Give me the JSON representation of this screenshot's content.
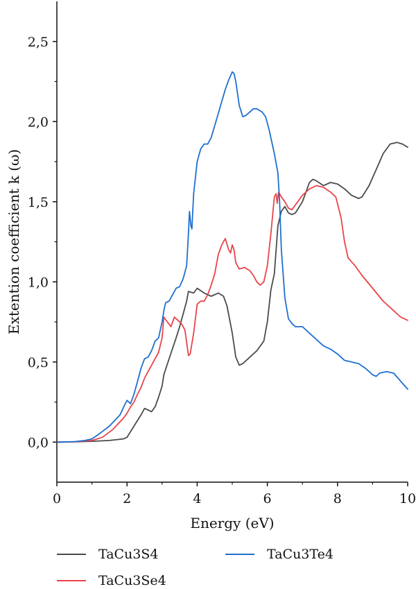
{
  "chart_data": {
    "type": "line",
    "xlabel": "Energy (eV)",
    "ylabel": "Extention coefficient k (ω)",
    "xlim": [
      0,
      10
    ],
    "ylim": [
      -0.25,
      2.75
    ],
    "x_ticks": [
      0,
      2,
      4,
      6,
      8,
      10
    ],
    "x_tick_labels": [
      "0",
      "2",
      "4",
      "6",
      "8",
      "10"
    ],
    "y_ticks": [
      0,
      0.5,
      1,
      1.5,
      2,
      2.5
    ],
    "y_tick_labels": [
      "0,0",
      "0,5",
      "1,0",
      "1,5",
      "2,0",
      "2,5"
    ],
    "grid": false,
    "legend_position": "bottom",
    "series": [
      {
        "name": "TaCu3S4",
        "color": "#4a4a4a",
        "points": [
          [
            0,
            0
          ],
          [
            0.5,
            0.002
          ],
          [
            1,
            0.005
          ],
          [
            1.5,
            0.01
          ],
          [
            1.9,
            0.02
          ],
          [
            2.0,
            0.03
          ],
          [
            2.2,
            0.1
          ],
          [
            2.4,
            0.17
          ],
          [
            2.5,
            0.21
          ],
          [
            2.6,
            0.2
          ],
          [
            2.7,
            0.19
          ],
          [
            2.8,
            0.22
          ],
          [
            2.9,
            0.28
          ],
          [
            3.0,
            0.35
          ],
          [
            3.05,
            0.42
          ],
          [
            3.2,
            0.52
          ],
          [
            3.4,
            0.65
          ],
          [
            3.5,
            0.72
          ],
          [
            3.6,
            0.8
          ],
          [
            3.7,
            0.88
          ],
          [
            3.75,
            0.94
          ],
          [
            3.9,
            0.93
          ],
          [
            4.0,
            0.96
          ],
          [
            4.2,
            0.93
          ],
          [
            4.4,
            0.91
          ],
          [
            4.6,
            0.93
          ],
          [
            4.75,
            0.91
          ],
          [
            4.85,
            0.85
          ],
          [
            5.0,
            0.68
          ],
          [
            5.1,
            0.53
          ],
          [
            5.2,
            0.48
          ],
          [
            5.3,
            0.49
          ],
          [
            5.5,
            0.53
          ],
          [
            5.7,
            0.57
          ],
          [
            5.9,
            0.63
          ],
          [
            6.0,
            0.75
          ],
          [
            6.1,
            0.95
          ],
          [
            6.2,
            1.05
          ],
          [
            6.3,
            1.35
          ],
          [
            6.4,
            1.44
          ],
          [
            6.5,
            1.47
          ],
          [
            6.6,
            1.43
          ],
          [
            6.7,
            1.42
          ],
          [
            6.8,
            1.43
          ],
          [
            7.0,
            1.5
          ],
          [
            7.2,
            1.62
          ],
          [
            7.3,
            1.64
          ],
          [
            7.4,
            1.63
          ],
          [
            7.6,
            1.6
          ],
          [
            7.8,
            1.62
          ],
          [
            8.0,
            1.61
          ],
          [
            8.2,
            1.58
          ],
          [
            8.4,
            1.54
          ],
          [
            8.6,
            1.52
          ],
          [
            8.7,
            1.53
          ],
          [
            8.9,
            1.6
          ],
          [
            9.1,
            1.7
          ],
          [
            9.3,
            1.8
          ],
          [
            9.5,
            1.86
          ],
          [
            9.7,
            1.87
          ],
          [
            9.85,
            1.86
          ],
          [
            10,
            1.84
          ]
        ]
      },
      {
        "name": "TaCu3Se4",
        "color": "#e8434a",
        "points": [
          [
            0,
            0
          ],
          [
            0.5,
            0.002
          ],
          [
            1,
            0.01
          ],
          [
            1.3,
            0.03
          ],
          [
            1.6,
            0.08
          ],
          [
            1.9,
            0.15
          ],
          [
            2.0,
            0.18
          ],
          [
            2.1,
            0.22
          ],
          [
            2.2,
            0.25
          ],
          [
            2.3,
            0.3
          ],
          [
            2.4,
            0.34
          ],
          [
            2.5,
            0.4
          ],
          [
            2.7,
            0.48
          ],
          [
            2.9,
            0.56
          ],
          [
            3.0,
            0.65
          ],
          [
            3.05,
            0.78
          ],
          [
            3.15,
            0.75
          ],
          [
            3.25,
            0.72
          ],
          [
            3.35,
            0.78
          ],
          [
            3.45,
            0.76
          ],
          [
            3.55,
            0.74
          ],
          [
            3.65,
            0.7
          ],
          [
            3.75,
            0.54
          ],
          [
            3.8,
            0.55
          ],
          [
            3.9,
            0.68
          ],
          [
            4.0,
            0.86
          ],
          [
            4.1,
            0.88
          ],
          [
            4.2,
            0.88
          ],
          [
            4.3,
            0.92
          ],
          [
            4.4,
            0.98
          ],
          [
            4.5,
            1.05
          ],
          [
            4.6,
            1.17
          ],
          [
            4.7,
            1.23
          ],
          [
            4.8,
            1.27
          ],
          [
            4.9,
            1.2
          ],
          [
            4.95,
            1.18
          ],
          [
            5.0,
            1.23
          ],
          [
            5.05,
            1.2
          ],
          [
            5.1,
            1.12
          ],
          [
            5.2,
            1.08
          ],
          [
            5.35,
            1.09
          ],
          [
            5.5,
            1.07
          ],
          [
            5.6,
            1.04
          ],
          [
            5.7,
            1.0
          ],
          [
            5.8,
            0.98
          ],
          [
            5.9,
            1.0
          ],
          [
            6.0,
            1.1
          ],
          [
            6.1,
            1.3
          ],
          [
            6.2,
            1.53
          ],
          [
            6.25,
            1.55
          ],
          [
            6.28,
            1.49
          ],
          [
            6.32,
            1.56
          ],
          [
            6.4,
            1.53
          ],
          [
            6.5,
            1.5
          ],
          [
            6.6,
            1.46
          ],
          [
            6.7,
            1.45
          ],
          [
            6.8,
            1.48
          ],
          [
            7.0,
            1.54
          ],
          [
            7.2,
            1.58
          ],
          [
            7.4,
            1.6
          ],
          [
            7.6,
            1.59
          ],
          [
            7.8,
            1.56
          ],
          [
            7.95,
            1.53
          ],
          [
            8.1,
            1.4
          ],
          [
            8.2,
            1.25
          ],
          [
            8.3,
            1.15
          ],
          [
            8.5,
            1.1
          ],
          [
            8.7,
            1.04
          ],
          [
            9.0,
            0.96
          ],
          [
            9.3,
            0.88
          ],
          [
            9.6,
            0.82
          ],
          [
            9.8,
            0.78
          ],
          [
            10,
            0.76
          ]
        ]
      },
      {
        "name": "TaCu3Te4",
        "color": "#1e6fd0",
        "points": [
          [
            0,
            0
          ],
          [
            0.5,
            0.003
          ],
          [
            0.8,
            0.01
          ],
          [
            1.0,
            0.02
          ],
          [
            1.2,
            0.05
          ],
          [
            1.5,
            0.1
          ],
          [
            1.8,
            0.17
          ],
          [
            1.95,
            0.24
          ],
          [
            2.0,
            0.26
          ],
          [
            2.1,
            0.24
          ],
          [
            2.2,
            0.3
          ],
          [
            2.3,
            0.38
          ],
          [
            2.4,
            0.46
          ],
          [
            2.5,
            0.52
          ],
          [
            2.6,
            0.53
          ],
          [
            2.7,
            0.57
          ],
          [
            2.8,
            0.63
          ],
          [
            2.9,
            0.65
          ],
          [
            3.0,
            0.75
          ],
          [
            3.05,
            0.82
          ],
          [
            3.1,
            0.87
          ],
          [
            3.2,
            0.88
          ],
          [
            3.3,
            0.92
          ],
          [
            3.4,
            0.96
          ],
          [
            3.5,
            0.97
          ],
          [
            3.6,
            1.02
          ],
          [
            3.7,
            1.1
          ],
          [
            3.75,
            1.3
          ],
          [
            3.78,
            1.44
          ],
          [
            3.82,
            1.35
          ],
          [
            3.85,
            1.33
          ],
          [
            3.9,
            1.55
          ],
          [
            4.0,
            1.75
          ],
          [
            4.1,
            1.83
          ],
          [
            4.2,
            1.86
          ],
          [
            4.3,
            1.86
          ],
          [
            4.4,
            1.9
          ],
          [
            4.6,
            2.05
          ],
          [
            4.8,
            2.2
          ],
          [
            4.9,
            2.26
          ],
          [
            5.0,
            2.31
          ],
          [
            5.05,
            2.3
          ],
          [
            5.1,
            2.25
          ],
          [
            5.2,
            2.1
          ],
          [
            5.3,
            2.03
          ],
          [
            5.4,
            2.04
          ],
          [
            5.5,
            2.06
          ],
          [
            5.6,
            2.08
          ],
          [
            5.7,
            2.08
          ],
          [
            5.85,
            2.06
          ],
          [
            5.95,
            2.03
          ],
          [
            6.05,
            1.95
          ],
          [
            6.2,
            1.8
          ],
          [
            6.3,
            1.68
          ],
          [
            6.35,
            1.5
          ],
          [
            6.4,
            1.2
          ],
          [
            6.5,
            0.9
          ],
          [
            6.6,
            0.77
          ],
          [
            6.7,
            0.74
          ],
          [
            6.8,
            0.72
          ],
          [
            7.0,
            0.72
          ],
          [
            7.2,
            0.68
          ],
          [
            7.4,
            0.64
          ],
          [
            7.6,
            0.6
          ],
          [
            7.8,
            0.58
          ],
          [
            8.0,
            0.55
          ],
          [
            8.2,
            0.51
          ],
          [
            8.4,
            0.5
          ],
          [
            8.6,
            0.49
          ],
          [
            8.8,
            0.46
          ],
          [
            9.0,
            0.42
          ],
          [
            9.1,
            0.41
          ],
          [
            9.2,
            0.43
          ],
          [
            9.4,
            0.44
          ],
          [
            9.6,
            0.43
          ],
          [
            9.8,
            0.38
          ],
          [
            10,
            0.33
          ]
        ]
      }
    ]
  }
}
